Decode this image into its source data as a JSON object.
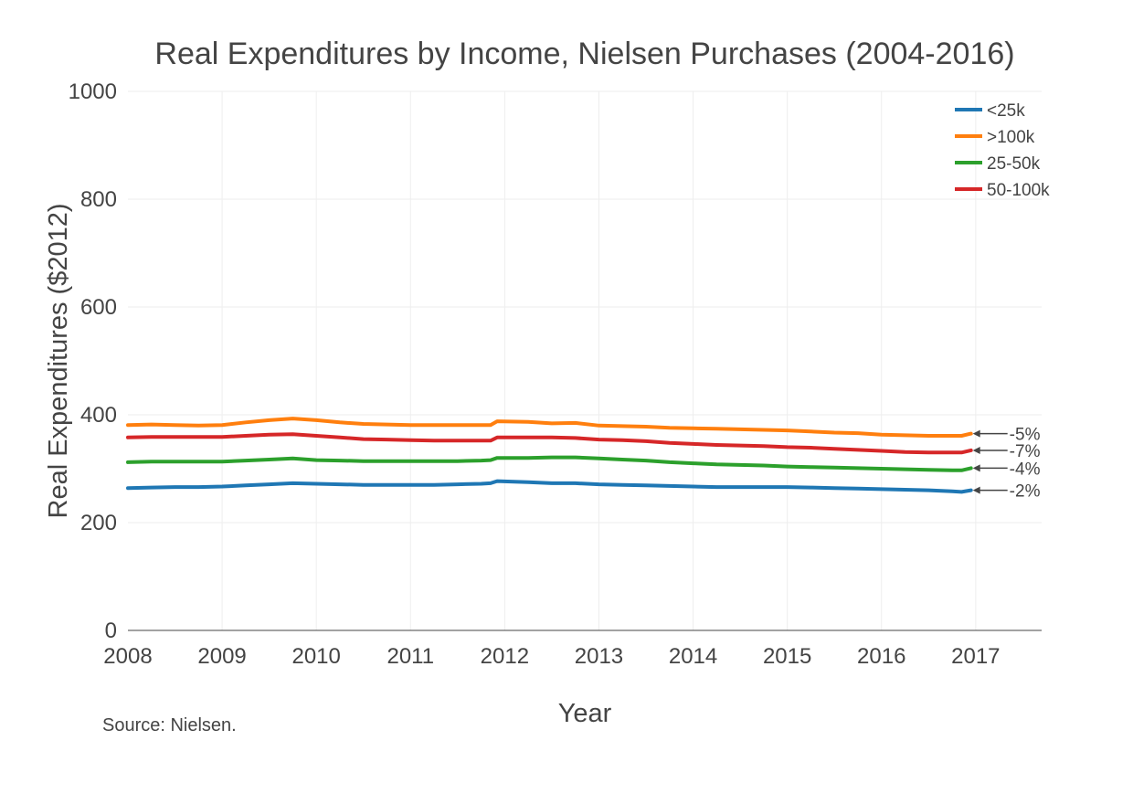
{
  "chart_data": {
    "type": "line",
    "title": "Real Expenditures by Income, Nielsen Purchases (2004-2016)",
    "xlabel": "Year",
    "ylabel": "Real Expenditures ($2012)",
    "xlim": [
      2008,
      2017.7
    ],
    "ylim": [
      0,
      1000
    ],
    "x_ticks": [
      "2008",
      "2009",
      "2010",
      "2011",
      "2012",
      "2013",
      "2014",
      "2015",
      "2016",
      "2017"
    ],
    "y_ticks": [
      "0",
      "200",
      "400",
      "600",
      "800",
      "1000"
    ],
    "grid": true,
    "legend_position": "top-right",
    "x": [
      2008.0,
      2008.25,
      2008.5,
      2008.75,
      2009.0,
      2009.25,
      2009.5,
      2009.75,
      2010.0,
      2010.25,
      2010.5,
      2010.75,
      2011.0,
      2011.25,
      2011.5,
      2011.75,
      2011.85,
      2011.92,
      2012.25,
      2012.5,
      2012.75,
      2013.0,
      2013.25,
      2013.5,
      2013.75,
      2014.0,
      2014.25,
      2014.5,
      2014.75,
      2015.0,
      2015.25,
      2015.5,
      2015.75,
      2016.0,
      2016.25,
      2016.5,
      2016.75,
      2016.85,
      2016.95
    ],
    "series": [
      {
        "name": "<25k",
        "color": "#1f77b4",
        "values": [
          264,
          265,
          266,
          266,
          267,
          269,
          271,
          273,
          272,
          271,
          270,
          270,
          270,
          270,
          271,
          272,
          273,
          277,
          275,
          273,
          273,
          271,
          270,
          269,
          268,
          267,
          266,
          266,
          266,
          266,
          265,
          264,
          263,
          262,
          261,
          260,
          258,
          257,
          260
        ]
      },
      {
        "name": ">100k",
        "color": "#ff7f0e",
        "values": [
          381,
          382,
          381,
          380,
          381,
          386,
          390,
          393,
          390,
          386,
          383,
          382,
          381,
          381,
          381,
          381,
          381,
          388,
          387,
          384,
          385,
          380,
          379,
          378,
          376,
          375,
          374,
          373,
          372,
          371,
          369,
          367,
          366,
          363,
          362,
          361,
          361,
          361,
          365
        ]
      },
      {
        "name": "25-50k",
        "color": "#2ca02c",
        "values": [
          312,
          313,
          313,
          313,
          313,
          315,
          317,
          319,
          316,
          315,
          314,
          314,
          314,
          314,
          314,
          315,
          316,
          320,
          320,
          321,
          321,
          319,
          317,
          315,
          312,
          310,
          308,
          307,
          306,
          304,
          303,
          302,
          301,
          300,
          299,
          298,
          297,
          297,
          301
        ]
      },
      {
        "name": "50-100k",
        "color": "#d62728",
        "values": [
          358,
          359,
          359,
          359,
          359,
          361,
          363,
          364,
          361,
          358,
          355,
          354,
          353,
          352,
          352,
          352,
          352,
          358,
          358,
          358,
          357,
          354,
          353,
          351,
          348,
          346,
          344,
          343,
          342,
          340,
          339,
          337,
          335,
          333,
          331,
          330,
          330,
          330,
          334
        ]
      }
    ],
    "annotations": [
      {
        "series": ">100k",
        "text": "-5%"
      },
      {
        "series": "50-100k",
        "text": "-7%"
      },
      {
        "series": "25-50k",
        "text": "-4%"
      },
      {
        "series": "<25k",
        "text": "-2%"
      }
    ],
    "source_note": "Source: Nielsen."
  }
}
